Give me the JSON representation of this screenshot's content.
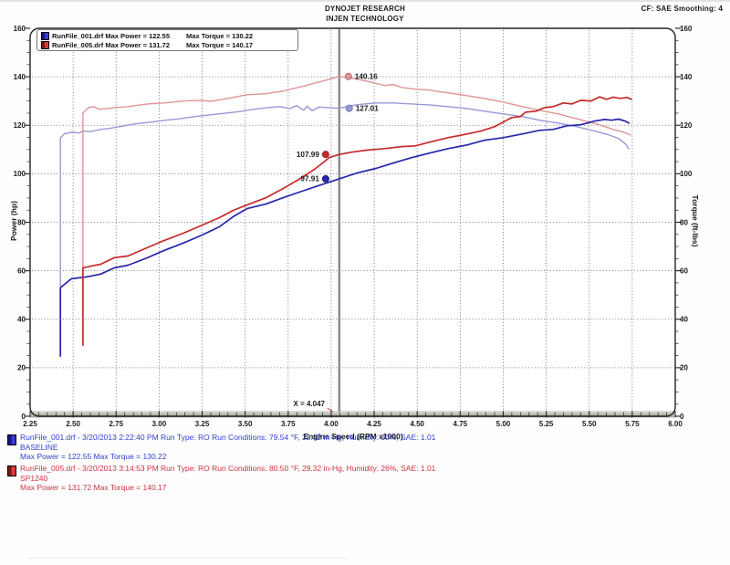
{
  "header": {
    "title_line1": "DYNOJET RESEARCH",
    "title_line2": "INJEN TECHNOLOGY",
    "correction_info": "CF: SAE  Smoothing: 4"
  },
  "legend": {
    "rows": [
      {
        "file": "RunFile_001.drf",
        "power": "Max Power = 122.55",
        "torque": "Max Torque = 130.22",
        "swatch_color": "#2a2ab8"
      },
      {
        "file": "RunFile_005.drf",
        "power": "Max Power = 131.72",
        "torque": "Max Torque = 140.17",
        "swatch_color": "#c82a2a"
      }
    ]
  },
  "runs": [
    {
      "line1": "RunFile_001.drf - 3/20/2013 2:22:40 PM  Run Type: RO  Run Conditions: 79.54 °F, 29.32 in-Hg,  Humidity:  30%, SAE: 1.01",
      "name": "BASELINE",
      "line3": "Max Power = 122.55  Max Torque = 130.22",
      "color": "#3340cc"
    },
    {
      "line1": "RunFile_005.drf - 3/20/2013 3:14:53 PM  Run Type: RO  Run Conditions: 80.50 °F, 29.32 in-Hg,  Humidity:  26%, SAE: 1.01",
      "name": "SP1240",
      "line3": "Max Power = 131.72  Max Torque = 140.17",
      "color": "#cc3340"
    }
  ],
  "chart_data": {
    "type": "line",
    "xlabel": "Engine Speed (RPM x1000)",
    "ylabel_left": "Power (hp)",
    "ylabel_right": "Torque (ft-lbs)",
    "x_range": [
      2.25,
      6.0
    ],
    "y_range": [
      0,
      160
    ],
    "x_tick_labels": [
      "2.25",
      "2.50",
      "2.75",
      "3.00",
      "3.25",
      "3.50",
      "3.75",
      "4.00",
      "4.25",
      "4.50",
      "4.75",
      "5.00",
      "5.25",
      "5.50",
      "5.75",
      "6.00"
    ],
    "y_tick_labels": [
      "0",
      "20",
      "40",
      "60",
      "80",
      "100",
      "120",
      "140",
      "160"
    ],
    "x_minor_step": 0.05,
    "y_minor_step": 5,
    "grid": "dotted",
    "cursor": {
      "x": 4.047,
      "label": "X = 4.047"
    },
    "series": [
      {
        "id": "torque_baseline",
        "name": "Baseline Torque (ft-lbs)",
        "color": "#9898d6",
        "width": 1.4,
        "points": [
          [
            2.426,
            53.7
          ],
          [
            2.426,
            114.8
          ],
          [
            2.45,
            116.5
          ],
          [
            2.5,
            117.2
          ],
          [
            2.53,
            116.8
          ],
          [
            2.56,
            117.6
          ],
          [
            2.6,
            117.4
          ],
          [
            2.66,
            118.3
          ],
          [
            2.71,
            118.7
          ],
          [
            2.77,
            119.4
          ],
          [
            2.86,
            120.6
          ],
          [
            2.95,
            121.3
          ],
          [
            3.04,
            122.1
          ],
          [
            3.13,
            122.8
          ],
          [
            3.22,
            123.7
          ],
          [
            3.31,
            124.4
          ],
          [
            3.4,
            125.1
          ],
          [
            3.46,
            125.6
          ],
          [
            3.55,
            126.6
          ],
          [
            3.63,
            127.3
          ],
          [
            3.7,
            127.7
          ],
          [
            3.76,
            126.9
          ],
          [
            3.8,
            128.1
          ],
          [
            3.84,
            126.2
          ],
          [
            3.86,
            127.9
          ],
          [
            3.89,
            126.0
          ],
          [
            3.93,
            127.5
          ],
          [
            4.047,
            127.01
          ],
          [
            4.15,
            128.5
          ],
          [
            4.26,
            129.2
          ],
          [
            4.36,
            129.2
          ],
          [
            4.47,
            128.8
          ],
          [
            4.57,
            128.4
          ],
          [
            4.68,
            127.7
          ],
          [
            4.79,
            126.9
          ],
          [
            4.89,
            125.8
          ],
          [
            5.0,
            124.7
          ],
          [
            5.11,
            123.6
          ],
          [
            5.21,
            122.1
          ],
          [
            5.32,
            120.9
          ],
          [
            5.43,
            119.4
          ],
          [
            5.53,
            117.6
          ],
          [
            5.61,
            116.1
          ],
          [
            5.67,
            114.6
          ],
          [
            5.71,
            112.3
          ],
          [
            5.73,
            110.4
          ]
        ]
      },
      {
        "id": "torque_sp1240",
        "name": "SP1240 Torque (ft-lbs)",
        "color": "#e09595",
        "width": 1.4,
        "points": [
          [
            2.557,
            60.2
          ],
          [
            2.557,
            125.1
          ],
          [
            2.59,
            127.3
          ],
          [
            2.62,
            127.7
          ],
          [
            2.65,
            126.6
          ],
          [
            2.7,
            126.9
          ],
          [
            2.74,
            127.3
          ],
          [
            2.82,
            127.7
          ],
          [
            2.93,
            128.8
          ],
          [
            3.03,
            129.2
          ],
          [
            3.14,
            130.0
          ],
          [
            3.24,
            130.3
          ],
          [
            3.3,
            129.9
          ],
          [
            3.4,
            131.1
          ],
          [
            3.51,
            132.6
          ],
          [
            3.62,
            133.0
          ],
          [
            3.72,
            134.1
          ],
          [
            3.83,
            136.0
          ],
          [
            3.91,
            137.5
          ],
          [
            3.99,
            139.0
          ],
          [
            4.047,
            140.16
          ],
          [
            4.12,
            139.4
          ],
          [
            4.2,
            138.3
          ],
          [
            4.31,
            136.4
          ],
          [
            4.36,
            136.8
          ],
          [
            4.41,
            135.6
          ],
          [
            4.49,
            134.9
          ],
          [
            4.57,
            134.5
          ],
          [
            4.63,
            133.8
          ],
          [
            4.68,
            133.4
          ],
          [
            4.79,
            132.2
          ],
          [
            4.89,
            131.1
          ],
          [
            5.0,
            129.6
          ],
          [
            5.11,
            127.7
          ],
          [
            5.21,
            126.2
          ],
          [
            5.32,
            124.7
          ],
          [
            5.4,
            123.2
          ],
          [
            5.48,
            121.7
          ],
          [
            5.56,
            120.2
          ],
          [
            5.64,
            118.3
          ],
          [
            5.7,
            117.2
          ],
          [
            5.74,
            116.0
          ]
        ]
      },
      {
        "id": "power_baseline",
        "name": "Baseline Power (hp)",
        "color": "#2525ae",
        "width": 1.7,
        "points": [
          [
            2.426,
            24.8
          ],
          [
            2.426,
            53.0
          ],
          [
            2.49,
            56.7
          ],
          [
            2.58,
            57.5
          ],
          [
            2.66,
            58.6
          ],
          [
            2.74,
            61.2
          ],
          [
            2.82,
            62.3
          ],
          [
            2.93,
            65.3
          ],
          [
            3.03,
            68.4
          ],
          [
            3.14,
            71.4
          ],
          [
            3.24,
            74.4
          ],
          [
            3.35,
            78.1
          ],
          [
            3.43,
            82.3
          ],
          [
            3.51,
            85.6
          ],
          [
            3.62,
            87.5
          ],
          [
            3.72,
            90.1
          ],
          [
            3.83,
            92.8
          ],
          [
            3.94,
            95.4
          ],
          [
            4.047,
            97.91
          ],
          [
            4.15,
            100.3
          ],
          [
            4.26,
            102.2
          ],
          [
            4.36,
            104.4
          ],
          [
            4.47,
            106.7
          ],
          [
            4.57,
            108.5
          ],
          [
            4.68,
            110.4
          ],
          [
            4.79,
            111.9
          ],
          [
            4.89,
            113.8
          ],
          [
            5.0,
            114.9
          ],
          [
            5.11,
            116.4
          ],
          [
            5.21,
            117.9
          ],
          [
            5.29,
            118.3
          ],
          [
            5.37,
            119.8
          ],
          [
            5.45,
            120.2
          ],
          [
            5.53,
            121.7
          ],
          [
            5.59,
            122.4
          ],
          [
            5.63,
            122.1
          ],
          [
            5.67,
            122.55
          ],
          [
            5.71,
            121.7
          ],
          [
            5.73,
            120.9
          ]
        ]
      },
      {
        "id": "power_sp1240",
        "name": "SP1240 Power (hp)",
        "color": "#c62a2a",
        "width": 1.7,
        "points": [
          [
            2.557,
            29.3
          ],
          [
            2.557,
            61.2
          ],
          [
            2.61,
            62.0
          ],
          [
            2.66,
            62.7
          ],
          [
            2.74,
            65.4
          ],
          [
            2.82,
            66.1
          ],
          [
            2.93,
            69.5
          ],
          [
            3.03,
            72.5
          ],
          [
            3.14,
            75.5
          ],
          [
            3.24,
            78.5
          ],
          [
            3.35,
            81.9
          ],
          [
            3.43,
            84.9
          ],
          [
            3.51,
            87.1
          ],
          [
            3.62,
            90.1
          ],
          [
            3.72,
            93.9
          ],
          [
            3.83,
            98.4
          ],
          [
            3.91,
            102.2
          ],
          [
            3.99,
            106.7
          ],
          [
            4.047,
            107.99
          ],
          [
            4.12,
            108.9
          ],
          [
            4.2,
            109.7
          ],
          [
            4.31,
            110.4
          ],
          [
            4.41,
            111.2
          ],
          [
            4.49,
            111.5
          ],
          [
            4.57,
            113.0
          ],
          [
            4.68,
            114.9
          ],
          [
            4.79,
            116.4
          ],
          [
            4.87,
            117.6
          ],
          [
            4.95,
            119.4
          ],
          [
            5.0,
            121.3
          ],
          [
            5.05,
            123.2
          ],
          [
            5.1,
            123.6
          ],
          [
            5.13,
            125.4
          ],
          [
            5.19,
            125.8
          ],
          [
            5.24,
            127.3
          ],
          [
            5.29,
            127.7
          ],
          [
            5.35,
            129.2
          ],
          [
            5.4,
            128.8
          ],
          [
            5.45,
            130.3
          ],
          [
            5.51,
            130.0
          ],
          [
            5.56,
            131.72
          ],
          [
            5.6,
            130.7
          ],
          [
            5.64,
            131.6
          ],
          [
            5.68,
            131.1
          ],
          [
            5.72,
            131.5
          ],
          [
            5.745,
            130.7
          ]
        ]
      }
    ],
    "cursor_markers": [
      {
        "label": "140.16",
        "rpm": 4.1,
        "value": 140.16,
        "color": "#e09595",
        "edge": "#b86060",
        "side": "right"
      },
      {
        "label": "127.01",
        "rpm": 4.105,
        "value": 127.01,
        "color": "#9898d6",
        "edge": "#6868b0",
        "side": "right"
      },
      {
        "label": "107.99",
        "rpm": 3.968,
        "value": 107.99,
        "color": "#c62a2a",
        "edge": "#8a1d1d",
        "side": "left"
      },
      {
        "label": "97.91",
        "rpm": 3.968,
        "value": 97.91,
        "color": "#2525ae",
        "edge": "#17177c",
        "side": "left"
      }
    ],
    "legend_position": "top-left",
    "max_values": {
      "baseline": {
        "max_power": 122.55,
        "max_torque": 130.22
      },
      "sp1240": {
        "max_power": 131.72,
        "max_torque": 140.17
      }
    }
  }
}
